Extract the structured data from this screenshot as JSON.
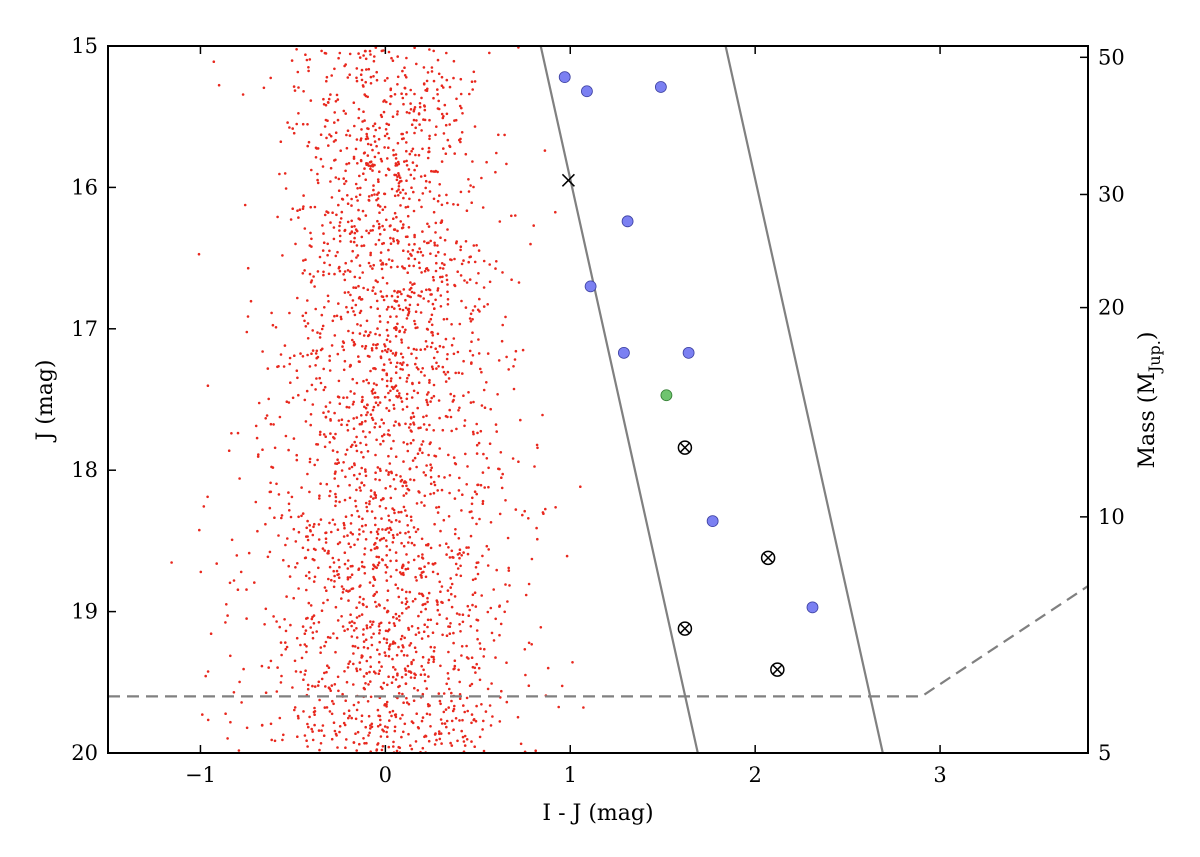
{
  "chart_data": {
    "type": "scatter",
    "xlabel": "I - J (mag)",
    "ylabel": "J (mag)",
    "y2label_main": "Mass (M",
    "y2label_sub": "Jup.",
    "y2label_close": ")",
    "xlim": [
      -1.5,
      3.8
    ],
    "ylim": [
      20,
      15
    ],
    "y_inverted": true,
    "x_ticks": [
      {
        "value": -1,
        "label": "−1"
      },
      {
        "value": 0,
        "label": "0"
      },
      {
        "value": 1,
        "label": "1"
      },
      {
        "value": 2,
        "label": "2"
      },
      {
        "value": 3,
        "label": "3"
      }
    ],
    "y_ticks": [
      {
        "value": 15,
        "label": "15"
      },
      {
        "value": 16,
        "label": "16"
      },
      {
        "value": 17,
        "label": "17"
      },
      {
        "value": 18,
        "label": "18"
      },
      {
        "value": 19,
        "label": "19"
      },
      {
        "value": 20,
        "label": "20"
      }
    ],
    "y2_ticks": [
      {
        "j": 15.08,
        "label": "50"
      },
      {
        "j": 16.05,
        "label": "30"
      },
      {
        "j": 16.85,
        "label": "20"
      },
      {
        "j": 18.33,
        "label": "10"
      },
      {
        "j": 20.0,
        "label": "5"
      }
    ],
    "field_stars": {
      "name": "field",
      "color": "#e8281e",
      "count": 2600,
      "x_center": 0.0,
      "x_sigma": 0.33,
      "j_range": [
        15.0,
        20.0
      ]
    },
    "candidates": [
      {
        "x": 0.97,
        "j": 15.22,
        "kind": "blue"
      },
      {
        "x": 1.09,
        "j": 15.32,
        "kind": "blue"
      },
      {
        "x": 1.49,
        "j": 15.29,
        "kind": "blue"
      },
      {
        "x": 1.31,
        "j": 16.24,
        "kind": "blue"
      },
      {
        "x": 1.11,
        "j": 16.7,
        "kind": "blue"
      },
      {
        "x": 1.29,
        "j": 17.17,
        "kind": "blue"
      },
      {
        "x": 1.64,
        "j": 17.17,
        "kind": "blue"
      },
      {
        "x": 1.77,
        "j": 18.36,
        "kind": "blue"
      },
      {
        "x": 2.31,
        "j": 18.97,
        "kind": "blue"
      },
      {
        "x": 1.52,
        "j": 17.47,
        "kind": "green"
      },
      {
        "x": 0.99,
        "j": 15.95,
        "kind": "x"
      },
      {
        "x": 1.62,
        "j": 17.84,
        "kind": "circle-x"
      },
      {
        "x": 2.07,
        "j": 18.62,
        "kind": "circle-x"
      },
      {
        "x": 1.62,
        "j": 19.12,
        "kind": "circle-x"
      },
      {
        "x": 2.12,
        "j": 19.41,
        "kind": "circle-x"
      }
    ],
    "solid_lines": [
      {
        "name": "selection-left",
        "points": [
          [
            0.84,
            15.0
          ],
          [
            1.69,
            20.0
          ]
        ]
      },
      {
        "name": "selection-right",
        "points": [
          [
            1.84,
            15.0
          ],
          [
            2.69,
            20.0
          ]
        ]
      }
    ],
    "dashed_line": {
      "name": "completeness-limit",
      "points": [
        [
          -1.5,
          19.6
        ],
        [
          2.9,
          19.6
        ],
        [
          3.8,
          18.82
        ]
      ]
    },
    "colors": {
      "field": "#e8281e",
      "blue": "#7b80f2",
      "green": "#6fc46f",
      "line": "#808080",
      "dashed": "#808080"
    }
  }
}
